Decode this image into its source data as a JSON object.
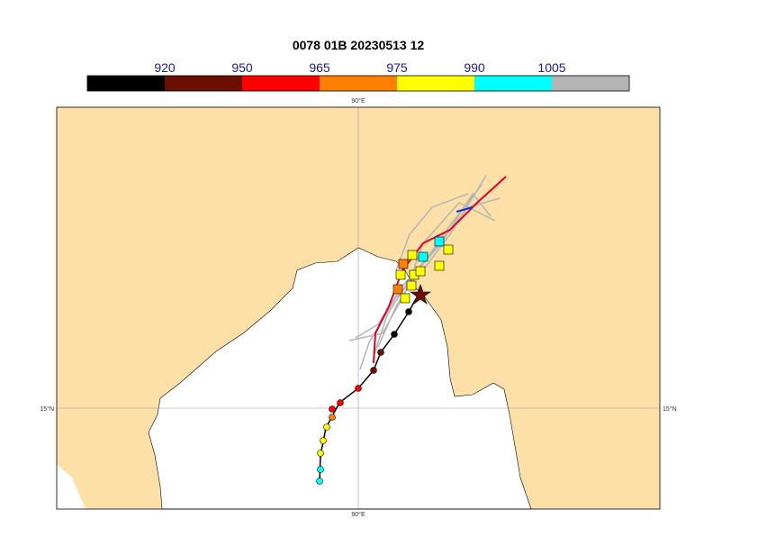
{
  "title": "0078 01B 20230513 12",
  "colorbar": {
    "labels": [
      920,
      950,
      965,
      975,
      990,
      1005
    ],
    "colors": [
      "#000000",
      "#6b1000",
      "#ff0000",
      "#ff8000",
      "#ffff00",
      "#00ffff",
      "#b4b4b4"
    ]
  },
  "axes": {
    "top": "90°E",
    "bottom": "90°E",
    "left": "15°N",
    "right": "15°N"
  }
}
